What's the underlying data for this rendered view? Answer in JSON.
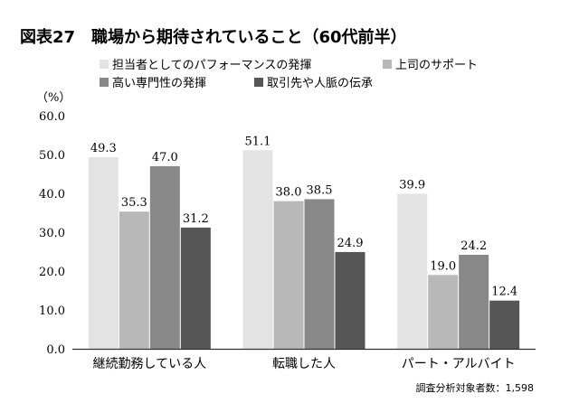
{
  "chart_data": {
    "type": "bar",
    "title": "図表27　職場から期待されていること（60代前半）",
    "ylabel": "（%）",
    "ylim": [
      0,
      60
    ],
    "yticks": [
      "0.0",
      "10.0",
      "20.0",
      "30.0",
      "40.0",
      "50.0",
      "60.0"
    ],
    "categories": [
      "継続勤務している人",
      "転職した人",
      "パート・アルバイト"
    ],
    "series": [
      {
        "name": "担当者としてのパフォーマンスの発揮",
        "color": "#e3e3e3",
        "values": [
          49.3,
          51.1,
          39.9
        ],
        "labels": [
          "49.3",
          "51.1",
          "39.9"
        ]
      },
      {
        "name": "上司のサポート",
        "color": "#b8b8b8",
        "values": [
          35.3,
          38.0,
          19.0
        ],
        "labels": [
          "35.3",
          "38.0",
          "19.0"
        ]
      },
      {
        "name": "高い専門性の発揮",
        "color": "#888888",
        "values": [
          47.0,
          38.5,
          24.2
        ],
        "labels": [
          "47.0",
          "38.5",
          "24.2"
        ]
      },
      {
        "name": "取引先や人脈の伝承",
        "color": "#565656",
        "values": [
          31.2,
          24.9,
          12.4
        ],
        "labels": [
          "31.2",
          "24.9",
          "12.4"
        ]
      }
    ],
    "legend_position": "top",
    "grid": false,
    "note": "調査分析対象者数：1,598"
  }
}
